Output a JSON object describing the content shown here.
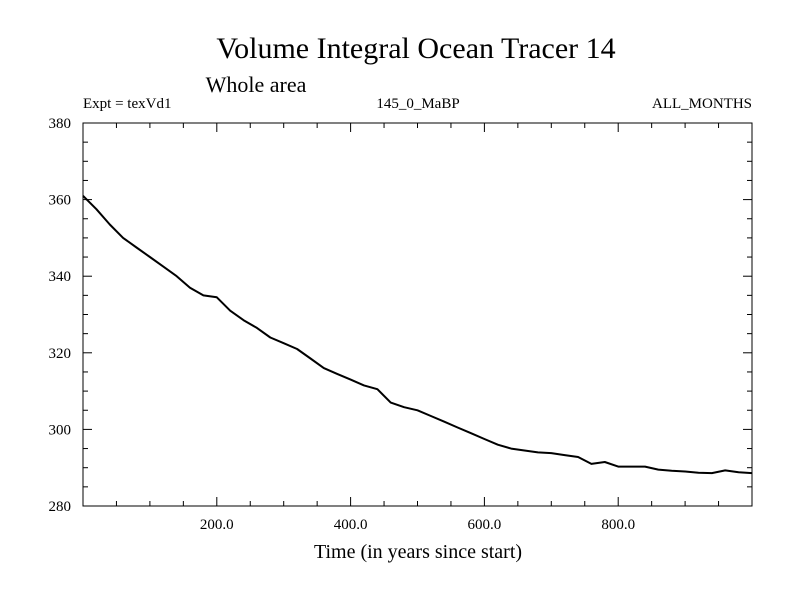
{
  "chart_data": {
    "type": "line",
    "title": "Volume Integral Ocean Tracer 14",
    "subtitle": "Whole area",
    "expt_label": "Expt = texVd1",
    "center_label": "145_0_MaBP",
    "right_label": "ALL_MONTHS",
    "xlabel": "Time (in years since start)",
    "ylabel": "",
    "xlim": [
      0,
      1000
    ],
    "ylim": [
      280,
      380
    ],
    "x_ticks": [
      200,
      400,
      600,
      800
    ],
    "x_tick_labels": [
      "200.0",
      "400.0",
      "600.0",
      "800.0"
    ],
    "x_minor_step": 50,
    "y_ticks": [
      280,
      300,
      320,
      340,
      360,
      380
    ],
    "y_tick_labels": [
      "280",
      "300",
      "320",
      "340",
      "360",
      "380"
    ],
    "y_minor_step": 5,
    "grid": false,
    "line_color": "#000000",
    "series": [
      {
        "name": "Tracer 14",
        "x": [
          0,
          20,
          40,
          60,
          80,
          100,
          120,
          140,
          160,
          180,
          200,
          220,
          240,
          260,
          280,
          300,
          320,
          340,
          360,
          380,
          400,
          420,
          440,
          460,
          480,
          500,
          520,
          540,
          560,
          580,
          600,
          620,
          640,
          660,
          680,
          700,
          720,
          740,
          760,
          780,
          800,
          820,
          840,
          860,
          880,
          900,
          920,
          940,
          960,
          980,
          1000
        ],
        "values": [
          361,
          357.5,
          353.5,
          350,
          347.5,
          345,
          342.5,
          340,
          337,
          335,
          334.5,
          331,
          328.5,
          326.5,
          324,
          322.5,
          321,
          318.5,
          316,
          314.5,
          313,
          311.5,
          310.5,
          307,
          305.8,
          305,
          303.5,
          302,
          300.5,
          299,
          297.5,
          296,
          295,
          294.5,
          294,
          293.8,
          293.3,
          292.8,
          291,
          291.5,
          290.3,
          290.3,
          290.3,
          289.5,
          289.2,
          289,
          288.7,
          288.6,
          289.3,
          288.8,
          288.6
        ]
      }
    ]
  }
}
